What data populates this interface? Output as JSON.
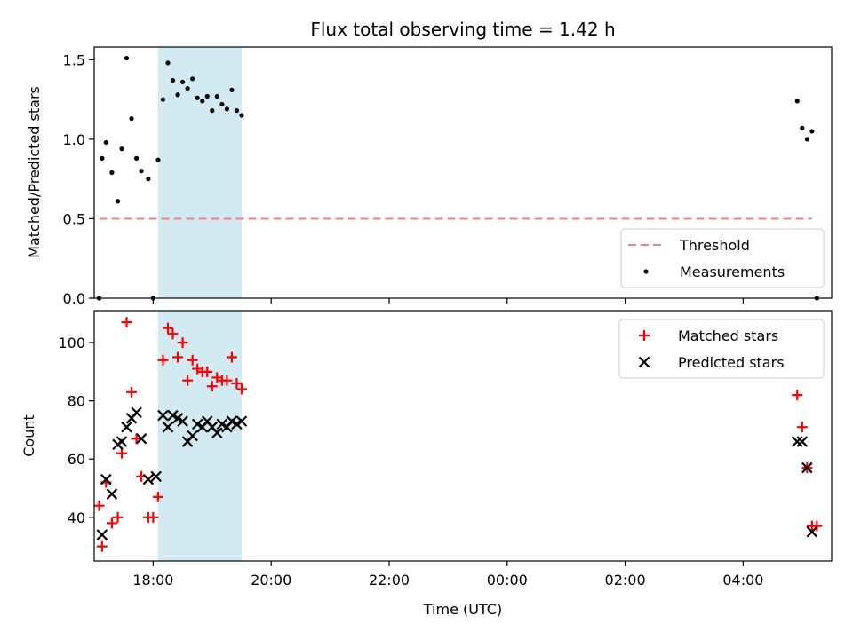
{
  "chart_data": [
    {
      "type": "scatter",
      "title": "Flux total observing time = 1.42 h",
      "xlabel": "",
      "ylabel": "Matched/Predicted stars",
      "xlim": [
        "17:00",
        "05:30"
      ],
      "ylim": [
        0,
        1.58
      ],
      "yticks": [
        "0.0",
        "0.5",
        "1.0",
        "1.5"
      ],
      "shaded_span": [
        "18:05",
        "19:30"
      ],
      "shade_color": "#add8e6",
      "threshold": {
        "name": "Threshold",
        "value": 0.5,
        "x_range": [
          "17:05",
          "05:10"
        ],
        "color": "#ff7f7f",
        "style": "dashed"
      },
      "series": [
        {
          "name": "Measurements",
          "color": "#000000",
          "marker": "dot",
          "points": [
            {
              "x": "17:05",
              "y": 0.0
            },
            {
              "x": "17:08",
              "y": 0.88
            },
            {
              "x": "17:12",
              "y": 0.98
            },
            {
              "x": "17:18",
              "y": 0.79
            },
            {
              "x": "17:24",
              "y": 0.61
            },
            {
              "x": "17:28",
              "y": 0.94
            },
            {
              "x": "17:33",
              "y": 1.51
            },
            {
              "x": "17:38",
              "y": 1.13
            },
            {
              "x": "17:43",
              "y": 0.88
            },
            {
              "x": "17:48",
              "y": 0.8
            },
            {
              "x": "17:55",
              "y": 0.75
            },
            {
              "x": "18:00",
              "y": 0.0
            },
            {
              "x": "18:05",
              "y": 0.87
            },
            {
              "x": "18:10",
              "y": 1.25
            },
            {
              "x": "18:15",
              "y": 1.48
            },
            {
              "x": "18:20",
              "y": 1.37
            },
            {
              "x": "18:25",
              "y": 1.28
            },
            {
              "x": "18:30",
              "y": 1.36
            },
            {
              "x": "18:35",
              "y": 1.32
            },
            {
              "x": "18:40",
              "y": 1.38
            },
            {
              "x": "18:45",
              "y": 1.26
            },
            {
              "x": "18:50",
              "y": 1.24
            },
            {
              "x": "18:55",
              "y": 1.27
            },
            {
              "x": "19:00",
              "y": 1.18
            },
            {
              "x": "19:05",
              "y": 1.27
            },
            {
              "x": "19:10",
              "y": 1.22
            },
            {
              "x": "19:15",
              "y": 1.19
            },
            {
              "x": "19:20",
              "y": 1.31
            },
            {
              "x": "19:25",
              "y": 1.18
            },
            {
              "x": "19:30",
              "y": 1.15
            },
            {
              "x": "04:55",
              "y": 1.24
            },
            {
              "x": "05:00",
              "y": 1.07
            },
            {
              "x": "05:05",
              "y": 1.0
            },
            {
              "x": "05:10",
              "y": 1.05
            },
            {
              "x": "05:15",
              "y": 0.0
            }
          ]
        }
      ],
      "legend": {
        "position": "lower right",
        "entries": [
          "Threshold",
          "Measurements"
        ]
      }
    },
    {
      "type": "scatter",
      "xlabel": "Time (UTC)",
      "ylabel": "Count",
      "xlim": [
        "17:00",
        "05:30"
      ],
      "ylim": [
        25,
        111
      ],
      "yticks": [
        "40",
        "60",
        "80",
        "100"
      ],
      "xticks": [
        "18:00",
        "20:00",
        "22:00",
        "00:00",
        "02:00",
        "04:00"
      ],
      "shaded_span": [
        "18:05",
        "19:30"
      ],
      "shade_color": "#add8e6",
      "series": [
        {
          "name": "Matched stars",
          "color": "#ff0000",
          "marker": "plus",
          "points": [
            {
              "x": "17:05",
              "y": 44
            },
            {
              "x": "17:08",
              "y": 30
            },
            {
              "x": "17:12",
              "y": 52
            },
            {
              "x": "17:18",
              "y": 38
            },
            {
              "x": "17:24",
              "y": 40
            },
            {
              "x": "17:28",
              "y": 62
            },
            {
              "x": "17:33",
              "y": 107
            },
            {
              "x": "17:38",
              "y": 83
            },
            {
              "x": "17:43",
              "y": 67
            },
            {
              "x": "17:48",
              "y": 54
            },
            {
              "x": "17:55",
              "y": 40
            },
            {
              "x": "18:00",
              "y": 40
            },
            {
              "x": "18:05",
              "y": 47
            },
            {
              "x": "18:10",
              "y": 94
            },
            {
              "x": "18:15",
              "y": 105
            },
            {
              "x": "18:20",
              "y": 103
            },
            {
              "x": "18:25",
              "y": 95
            },
            {
              "x": "18:30",
              "y": 100
            },
            {
              "x": "18:35",
              "y": 87
            },
            {
              "x": "18:40",
              "y": 94
            },
            {
              "x": "18:45",
              "y": 91
            },
            {
              "x": "18:50",
              "y": 90
            },
            {
              "x": "18:55",
              "y": 90
            },
            {
              "x": "19:00",
              "y": 85
            },
            {
              "x": "19:05",
              "y": 88
            },
            {
              "x": "19:10",
              "y": 87
            },
            {
              "x": "19:15",
              "y": 87
            },
            {
              "x": "19:20",
              "y": 95
            },
            {
              "x": "19:25",
              "y": 86
            },
            {
              "x": "19:30",
              "y": 84
            },
            {
              "x": "04:55",
              "y": 82
            },
            {
              "x": "05:00",
              "y": 71
            },
            {
              "x": "05:05",
              "y": 57
            },
            {
              "x": "05:10",
              "y": 37
            },
            {
              "x": "05:15",
              "y": 37
            }
          ]
        },
        {
          "name": "Predicted stars",
          "color": "#000000",
          "marker": "x",
          "points": [
            {
              "x": "17:08",
              "y": 34
            },
            {
              "x": "17:12",
              "y": 53
            },
            {
              "x": "17:18",
              "y": 48
            },
            {
              "x": "17:24",
              "y": 65
            },
            {
              "x": "17:28",
              "y": 66
            },
            {
              "x": "17:33",
              "y": 71
            },
            {
              "x": "17:38",
              "y": 74
            },
            {
              "x": "17:43",
              "y": 76
            },
            {
              "x": "17:48",
              "y": 67
            },
            {
              "x": "17:55",
              "y": 53
            },
            {
              "x": "18:03",
              "y": 54
            },
            {
              "x": "18:10",
              "y": 75
            },
            {
              "x": "18:15",
              "y": 71
            },
            {
              "x": "18:20",
              "y": 75
            },
            {
              "x": "18:25",
              "y": 74
            },
            {
              "x": "18:30",
              "y": 73
            },
            {
              "x": "18:35",
              "y": 66
            },
            {
              "x": "18:40",
              "y": 68
            },
            {
              "x": "18:45",
              "y": 72
            },
            {
              "x": "18:50",
              "y": 71
            },
            {
              "x": "18:55",
              "y": 73
            },
            {
              "x": "19:00",
              "y": 71
            },
            {
              "x": "19:05",
              "y": 69
            },
            {
              "x": "19:10",
              "y": 72
            },
            {
              "x": "19:15",
              "y": 71
            },
            {
              "x": "19:20",
              "y": 73
            },
            {
              "x": "19:25",
              "y": 72
            },
            {
              "x": "19:30",
              "y": 73
            },
            {
              "x": "04:55",
              "y": 66
            },
            {
              "x": "05:00",
              "y": 66
            },
            {
              "x": "05:05",
              "y": 57
            },
            {
              "x": "05:10",
              "y": 35
            }
          ]
        }
      ],
      "legend": {
        "position": "upper right",
        "entries": [
          "Matched stars",
          "Predicted stars"
        ]
      }
    }
  ]
}
